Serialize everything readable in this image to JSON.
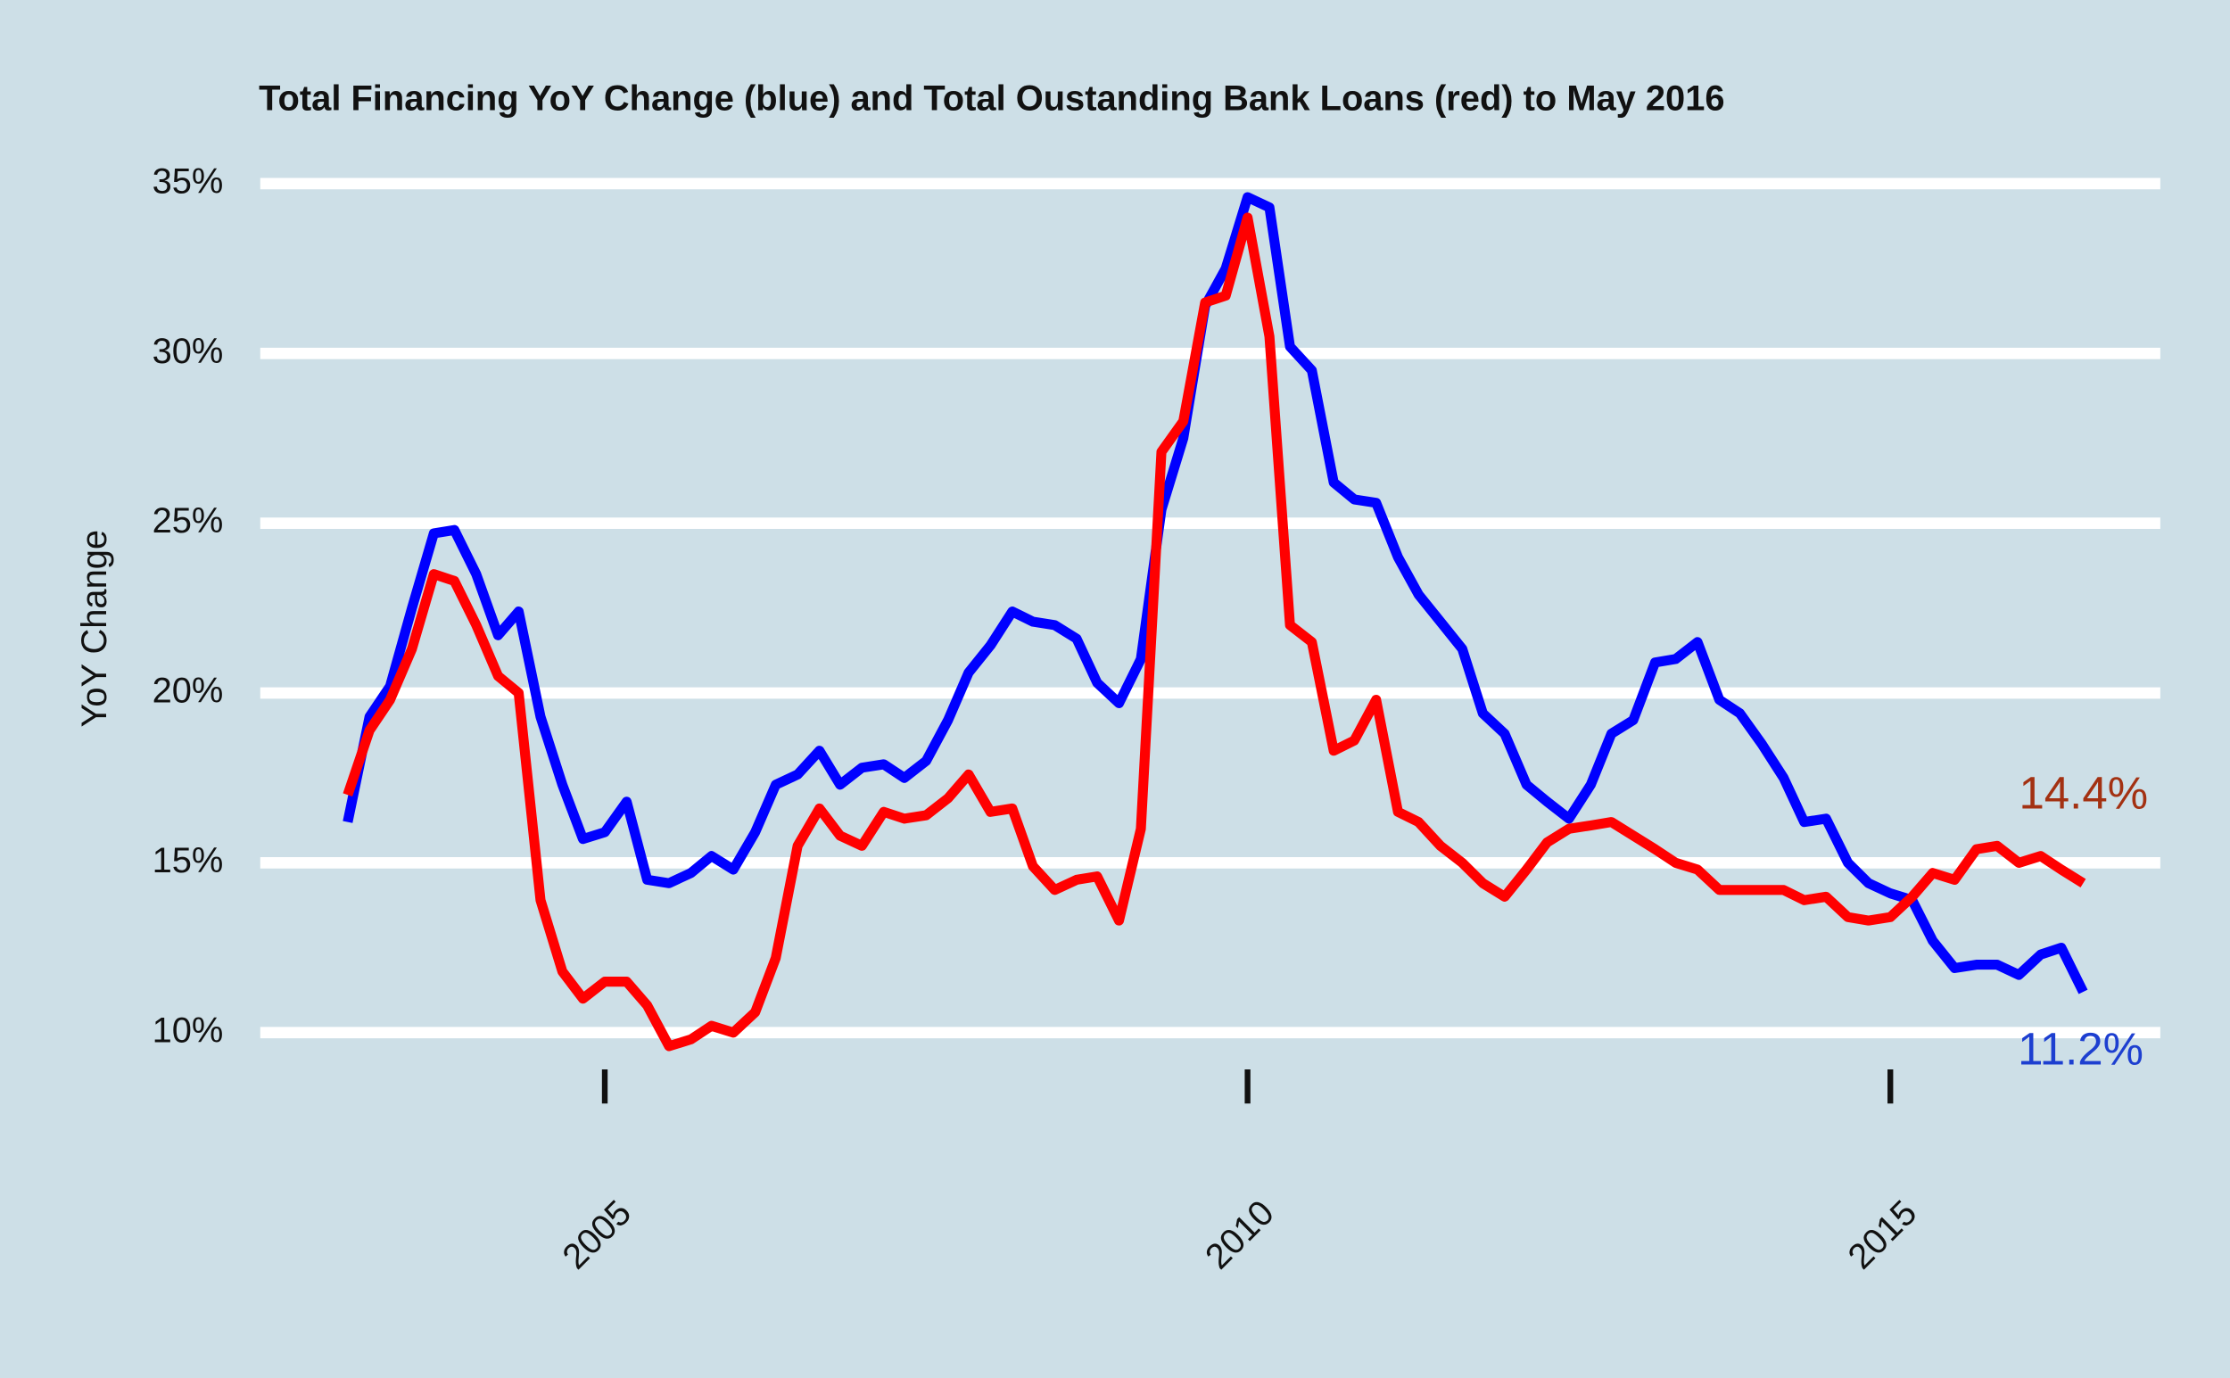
{
  "chart_data": {
    "type": "line",
    "title": "Total Financing YoY Change (blue) and Total Oustanding Bank Loans (red) to May 2016",
    "y_label": "YoY Change",
    "xlim": [
      2002.32,
      2017.1
    ],
    "xticks": [
      2005,
      2010,
      2015
    ],
    "ylim": [
      9,
      35.8
    ],
    "yticks": [
      {
        "value": 10,
        "label": "10%"
      },
      {
        "value": 15,
        "label": "15%"
      },
      {
        "value": 20,
        "label": "20%"
      },
      {
        "value": 25,
        "label": "25%"
      },
      {
        "value": 30,
        "label": "30%"
      },
      {
        "value": 35,
        "label": "35%"
      }
    ],
    "grid": true,
    "x": [
      2003,
      2003.17,
      2003.33,
      2003.5,
      2003.67,
      2003.83,
      2004,
      2004.17,
      2004.33,
      2004.5,
      2004.67,
      2004.83,
      2005,
      2005.17,
      2005.33,
      2005.5,
      2005.67,
      2005.83,
      2006,
      2006.17,
      2006.33,
      2006.5,
      2006.67,
      2006.83,
      2007,
      2007.17,
      2007.33,
      2007.5,
      2007.67,
      2007.83,
      2008,
      2008.17,
      2008.33,
      2008.5,
      2008.67,
      2008.83,
      2009,
      2009.17,
      2009.33,
      2009.5,
      2009.67,
      2009.83,
      2010,
      2010.17,
      2010.33,
      2010.5,
      2010.67,
      2010.83,
      2011,
      2011.17,
      2011.33,
      2011.5,
      2011.67,
      2011.83,
      2012,
      2012.17,
      2012.33,
      2012.5,
      2012.67,
      2012.83,
      2013,
      2013.17,
      2013.33,
      2013.5,
      2013.67,
      2013.83,
      2014,
      2014.17,
      2014.33,
      2014.5,
      2014.67,
      2014.83,
      2015,
      2015.17,
      2015.33,
      2015.5,
      2015.67,
      2015.83,
      2016,
      2016.17,
      2016.33,
      2016.5
    ],
    "series": [
      {
        "name": "Total Financing",
        "color": "#0000ff",
        "values": [
          16.2,
          19.3,
          20.2,
          22.5,
          24.7,
          24.8,
          23.5,
          21.7,
          22.4,
          19.3,
          17.3,
          15.7,
          15.9,
          16.8,
          14.5,
          14.4,
          14.7,
          15.2,
          14.8,
          15.9,
          17.3,
          17.6,
          18.3,
          17.3,
          17.8,
          17.9,
          17.5,
          18.0,
          19.2,
          20.6,
          21.4,
          22.4,
          22.1,
          22.0,
          21.6,
          20.3,
          19.7,
          21.0,
          25.4,
          27.5,
          31.4,
          32.5,
          34.6,
          34.3,
          30.2,
          29.5,
          26.2,
          25.7,
          25.6,
          24.0,
          22.9,
          22.1,
          21.3,
          19.4,
          18.8,
          17.3,
          16.8,
          16.3,
          17.3,
          18.8,
          19.2,
          20.9,
          21.0,
          21.5,
          19.8,
          19.4,
          18.5,
          17.5,
          16.2,
          16.3,
          15.0,
          14.4,
          14.1,
          13.9,
          12.7,
          11.9,
          12.0,
          12.0,
          11.7,
          12.3,
          12.5,
          11.2
        ]
      },
      {
        "name": "Total Oustanding Bank Loans",
        "color": "#ff0000",
        "values": [
          17.0,
          18.9,
          19.8,
          21.3,
          23.5,
          23.3,
          22.0,
          20.5,
          20.0,
          13.9,
          11.8,
          11.0,
          11.5,
          11.5,
          10.8,
          9.6,
          9.8,
          10.2,
          10.0,
          10.6,
          12.2,
          15.5,
          16.6,
          15.8,
          15.5,
          16.5,
          16.3,
          16.4,
          16.9,
          17.6,
          16.5,
          16.6,
          14.9,
          14.2,
          14.5,
          14.6,
          13.3,
          16.0,
          27.1,
          28.0,
          31.5,
          31.7,
          34.0,
          30.5,
          22.0,
          21.5,
          18.3,
          18.6,
          19.8,
          16.5,
          16.2,
          15.5,
          15.0,
          14.4,
          14.0,
          14.8,
          15.6,
          16.0,
          16.1,
          16.2,
          15.8,
          15.4,
          15.0,
          14.8,
          14.2,
          14.2,
          14.2,
          14.2,
          13.9,
          14.0,
          13.4,
          13.3,
          13.4,
          14.0,
          14.7,
          14.5,
          15.4,
          15.5,
          15.0,
          15.2,
          14.8,
          14.4
        ]
      }
    ],
    "annotations": [
      {
        "text": "14.4%",
        "color": "#a33112"
      },
      {
        "text": "11.2%",
        "color": "#1d3fd0"
      }
    ]
  }
}
